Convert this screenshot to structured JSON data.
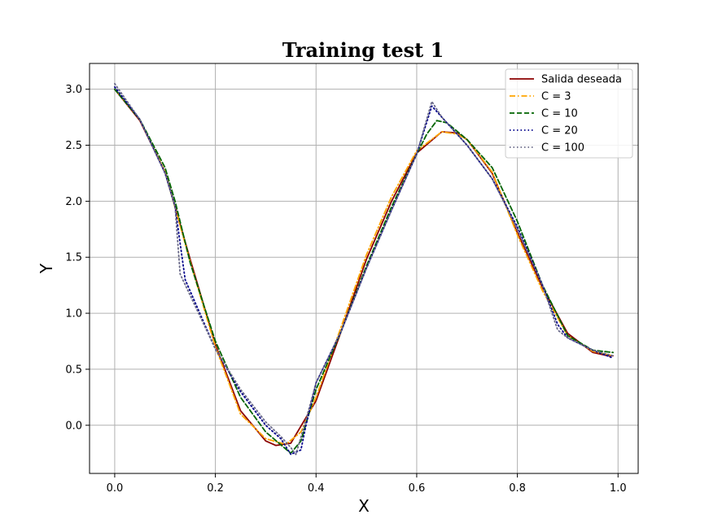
{
  "chart_data": {
    "type": "line",
    "title": "Training test 1",
    "xlabel": "X",
    "ylabel": "Y",
    "xlim": [
      -0.05,
      1.04
    ],
    "ylim": [
      -0.43,
      3.23
    ],
    "xticks": [
      "0.0",
      "0.2",
      "0.4",
      "0.6",
      "0.8",
      "1.0"
    ],
    "yticks": [
      "0.0",
      "0.5",
      "1.0",
      "1.5",
      "2.0",
      "2.5",
      "3.0"
    ],
    "grid": true,
    "legend_position": "top-right",
    "series": [
      {
        "name": "Salida deseada",
        "color": "#8b0000",
        "style": "solid",
        "points": [
          [
            0.0,
            3.0
          ],
          [
            0.05,
            2.72
          ],
          [
            0.1,
            2.26
          ],
          [
            0.15,
            1.48
          ],
          [
            0.2,
            0.72
          ],
          [
            0.25,
            0.13
          ],
          [
            0.3,
            -0.14
          ],
          [
            0.32,
            -0.18
          ],
          [
            0.35,
            -0.16
          ],
          [
            0.4,
            0.22
          ],
          [
            0.45,
            0.84
          ],
          [
            0.5,
            1.48
          ],
          [
            0.55,
            2.0
          ],
          [
            0.6,
            2.43
          ],
          [
            0.65,
            2.62
          ],
          [
            0.68,
            2.61
          ],
          [
            0.7,
            2.55
          ],
          [
            0.75,
            2.25
          ],
          [
            0.8,
            1.72
          ],
          [
            0.85,
            1.23
          ],
          [
            0.9,
            0.82
          ],
          [
            0.95,
            0.65
          ],
          [
            0.98,
            0.62
          ],
          [
            0.99,
            0.62
          ]
        ]
      },
      {
        "name": "C = 3",
        "color": "#ffa500",
        "style": "dashdot",
        "points": [
          [
            0.0,
            3.0
          ],
          [
            0.05,
            2.73
          ],
          [
            0.1,
            2.26
          ],
          [
            0.15,
            1.46
          ],
          [
            0.2,
            0.7
          ],
          [
            0.25,
            0.1
          ],
          [
            0.3,
            -0.12
          ],
          [
            0.34,
            -0.17
          ],
          [
            0.37,
            -0.06
          ],
          [
            0.4,
            0.25
          ],
          [
            0.45,
            0.88
          ],
          [
            0.5,
            1.52
          ],
          [
            0.55,
            2.04
          ],
          [
            0.6,
            2.45
          ],
          [
            0.65,
            2.62
          ],
          [
            0.68,
            2.6
          ],
          [
            0.7,
            2.55
          ],
          [
            0.75,
            2.26
          ],
          [
            0.8,
            1.7
          ],
          [
            0.85,
            1.2
          ],
          [
            0.9,
            0.8
          ],
          [
            0.95,
            0.66
          ],
          [
            0.99,
            0.62
          ]
        ]
      },
      {
        "name": "C = 10",
        "color": "#006400",
        "style": "dashed",
        "points": [
          [
            0.0,
            3.0
          ],
          [
            0.05,
            2.73
          ],
          [
            0.1,
            2.3
          ],
          [
            0.12,
            2.0
          ],
          [
            0.15,
            1.45
          ],
          [
            0.2,
            0.75
          ],
          [
            0.25,
            0.25
          ],
          [
            0.3,
            -0.06
          ],
          [
            0.35,
            -0.25
          ],
          [
            0.37,
            -0.14
          ],
          [
            0.4,
            0.32
          ],
          [
            0.45,
            0.84
          ],
          [
            0.5,
            1.42
          ],
          [
            0.55,
            1.95
          ],
          [
            0.6,
            2.42
          ],
          [
            0.62,
            2.6
          ],
          [
            0.64,
            2.72
          ],
          [
            0.66,
            2.7
          ],
          [
            0.7,
            2.55
          ],
          [
            0.75,
            2.3
          ],
          [
            0.8,
            1.82
          ],
          [
            0.85,
            1.25
          ],
          [
            0.9,
            0.8
          ],
          [
            0.95,
            0.67
          ],
          [
            0.99,
            0.65
          ]
        ]
      },
      {
        "name": "C = 20",
        "color": "#00008b",
        "style": "dotted",
        "points": [
          [
            0.0,
            3.02
          ],
          [
            0.05,
            2.73
          ],
          [
            0.1,
            2.25
          ],
          [
            0.12,
            1.95
          ],
          [
            0.14,
            1.3
          ],
          [
            0.2,
            0.68
          ],
          [
            0.25,
            0.3
          ],
          [
            0.3,
            0.0
          ],
          [
            0.33,
            -0.12
          ],
          [
            0.35,
            -0.26
          ],
          [
            0.37,
            -0.22
          ],
          [
            0.38,
            0.0
          ],
          [
            0.4,
            0.38
          ],
          [
            0.45,
            0.84
          ],
          [
            0.5,
            1.4
          ],
          [
            0.55,
            1.92
          ],
          [
            0.6,
            2.42
          ],
          [
            0.63,
            2.85
          ],
          [
            0.65,
            2.75
          ],
          [
            0.7,
            2.5
          ],
          [
            0.75,
            2.2
          ],
          [
            0.8,
            1.77
          ],
          [
            0.85,
            1.25
          ],
          [
            0.88,
            0.9
          ],
          [
            0.9,
            0.78
          ],
          [
            0.95,
            0.67
          ],
          [
            0.99,
            0.6
          ]
        ]
      },
      {
        "name": "C = 100",
        "color": "#696988",
        "style": "dotted",
        "points": [
          [
            0.0,
            3.05
          ],
          [
            0.05,
            2.73
          ],
          [
            0.1,
            2.25
          ],
          [
            0.12,
            1.95
          ],
          [
            0.13,
            1.35
          ],
          [
            0.2,
            0.68
          ],
          [
            0.25,
            0.32
          ],
          [
            0.3,
            0.03
          ],
          [
            0.33,
            -0.1
          ],
          [
            0.35,
            -0.2
          ],
          [
            0.36,
            -0.26
          ],
          [
            0.38,
            0.05
          ],
          [
            0.4,
            0.38
          ],
          [
            0.45,
            0.84
          ],
          [
            0.5,
            1.4
          ],
          [
            0.55,
            1.92
          ],
          [
            0.6,
            2.42
          ],
          [
            0.63,
            2.89
          ],
          [
            0.65,
            2.75
          ],
          [
            0.7,
            2.5
          ],
          [
            0.75,
            2.2
          ],
          [
            0.8,
            1.75
          ],
          [
            0.85,
            1.25
          ],
          [
            0.88,
            0.85
          ],
          [
            0.9,
            0.78
          ],
          [
            0.95,
            0.67
          ],
          [
            0.99,
            0.62
          ]
        ]
      }
    ]
  }
}
